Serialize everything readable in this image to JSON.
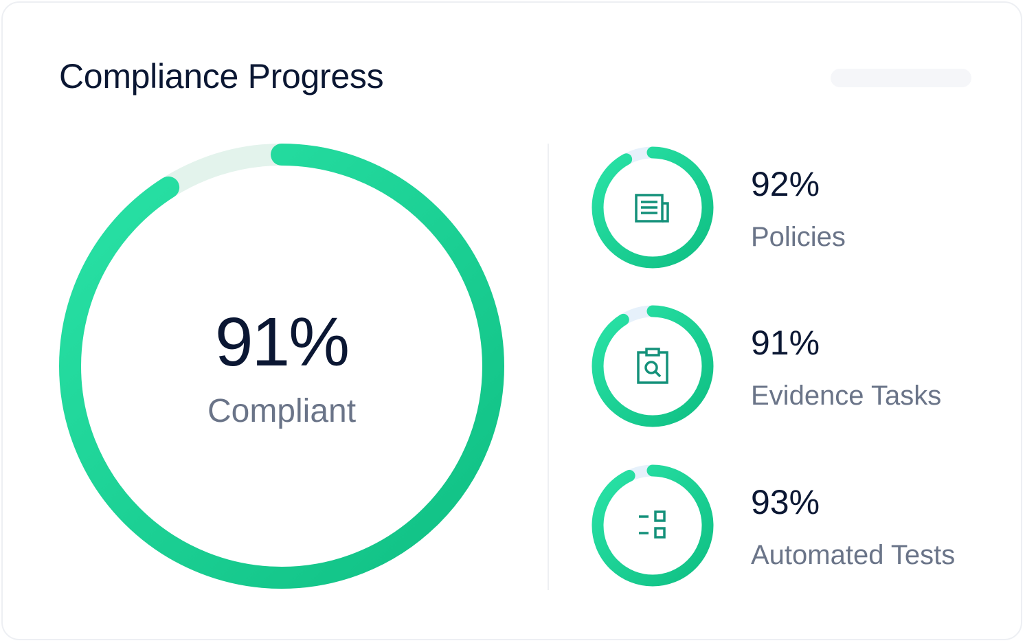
{
  "card": {
    "title": "Compliance Progress"
  },
  "overall": {
    "value_label": "91%",
    "status_label": "Compliant",
    "percent": 91
  },
  "metrics": [
    {
      "value_label": "92%",
      "label": "Policies",
      "percent": 92,
      "icon": "document-list-icon"
    },
    {
      "value_label": "91%",
      "label": "Evidence Tasks",
      "percent": 91,
      "icon": "clipboard-search-icon"
    },
    {
      "value_label": "93%",
      "label": "Automated Tests",
      "percent": 93,
      "icon": "checklist-icon"
    }
  ],
  "colors": {
    "ring_start": "#0fbf83",
    "ring_end": "#2ae3a7",
    "track_main": "#e3f3ec",
    "track_small": "#e6f1fb",
    "icon": "#14917a",
    "title": "#0b1733",
    "label": "#6a7488"
  }
}
